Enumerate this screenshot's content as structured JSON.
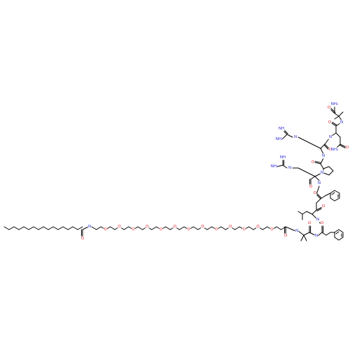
{
  "diagram_type": "skeletal structure",
  "colors": {
    "bond": "#000000",
    "nitrogen": "#2b2bd8",
    "oxygen": "#e02020",
    "background": "#ffffff"
  },
  "atom_labels": {
    "o_amide_lipid": "O",
    "n_amide_lipid": "N",
    "n_aib": "N",
    "o_peg_acyl": "O",
    "o_aib": "O",
    "n_phe2": "N",
    "o_phe2": "O",
    "n_leu": "N",
    "o_leu": "O",
    "n_phe1": "N",
    "o_phe1": "O",
    "n_arg1": "N",
    "o_arg1": "O",
    "n_pro": "N",
    "o_pro": "O",
    "n_arg2": "N",
    "o_arg2": "O",
    "n_asn": "N",
    "o_asn_side": "O",
    "nh2_asn": "NH₂",
    "o_asn_bb": "O",
    "n_aib2": "N",
    "o_term": "O",
    "nh2_term": "NH₂",
    "guan1_nh": "N",
    "guan1_imine": "NH",
    "guan1_nh2": "NH₂",
    "guan2_nh": "N",
    "guan2_imine": "NH",
    "guan2_nh2": "NH₂",
    "peg_o": "O"
  }
}
